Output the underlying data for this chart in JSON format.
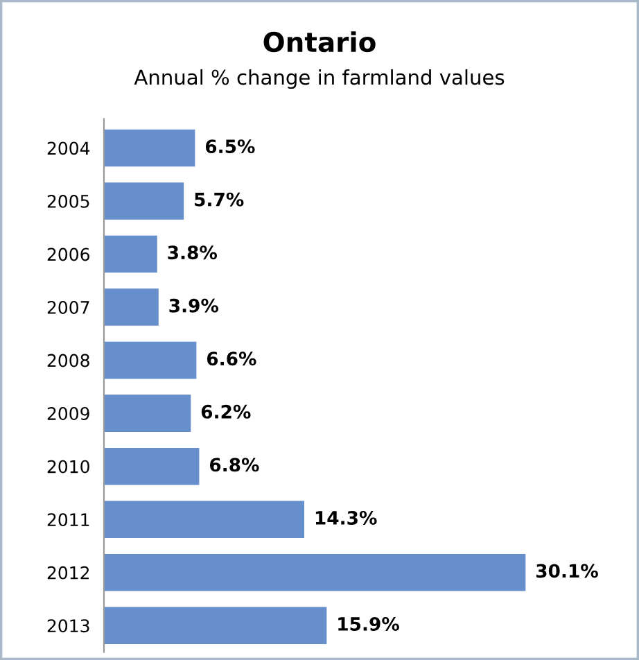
{
  "chart_data": {
    "type": "bar",
    "orientation": "horizontal",
    "title": "Ontario",
    "subtitle": "Annual % change in farmland values",
    "categories": [
      "2004",
      "2005",
      "2006",
      "2007",
      "2008",
      "2009",
      "2010",
      "2011",
      "2012",
      "2013"
    ],
    "values": [
      6.5,
      5.7,
      3.8,
      3.9,
      6.6,
      6.2,
      6.8,
      14.3,
      30.1,
      15.9
    ],
    "value_labels": [
      "6.5%",
      "5.7%",
      "3.8%",
      "3.9%",
      "6.6%",
      "6.2%",
      "6.8%",
      "14.3%",
      "30.1%",
      "15.9%"
    ],
    "color": "#678fcb",
    "tick_labels": "y",
    "grid": false,
    "legend": false
  }
}
